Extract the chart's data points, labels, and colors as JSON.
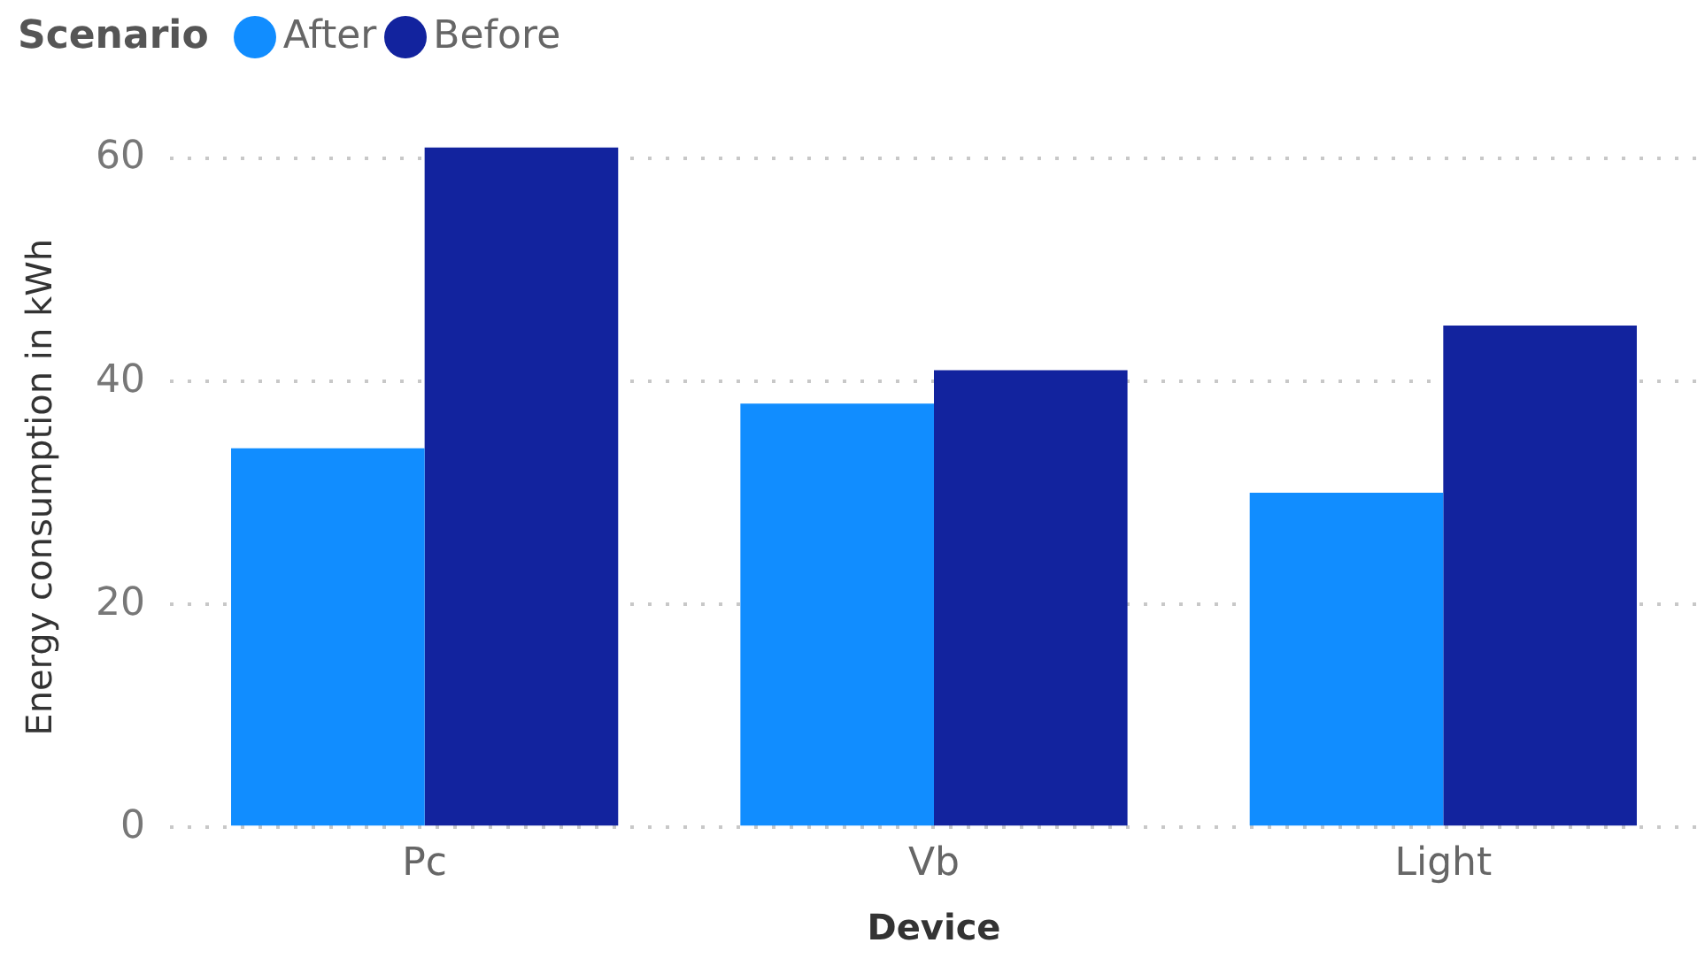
{
  "chart_data": {
    "type": "bar",
    "legend_title": "Scenario",
    "xlabel": "Device",
    "ylabel": "Energy consumption in kWh",
    "categories": [
      "Pc",
      "Vb",
      "Light"
    ],
    "series": [
      {
        "name": "After",
        "color": "#118dff",
        "values": [
          34,
          38,
          30
        ]
      },
      {
        "name": "Before",
        "color": "#12239e",
        "values": [
          61,
          41,
          45
        ]
      }
    ],
    "ylim": [
      0,
      61
    ],
    "yticks": [
      0,
      20,
      40,
      60
    ],
    "grid": "y",
    "legend": "top left"
  }
}
